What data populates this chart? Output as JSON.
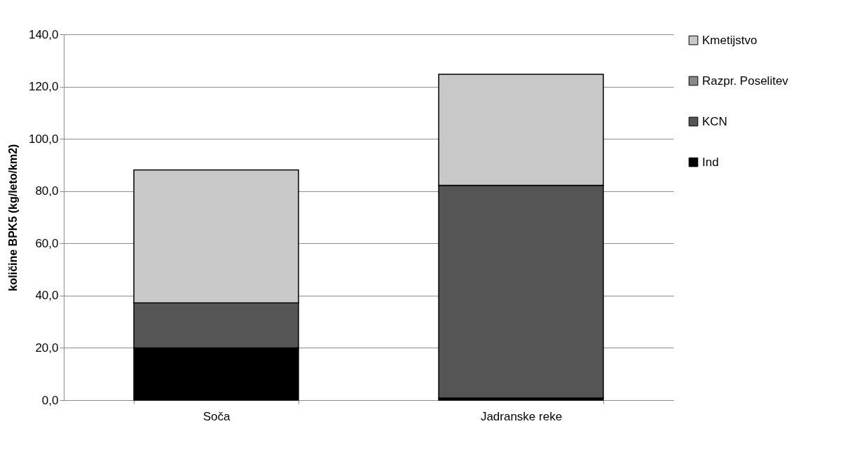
{
  "chart_data": {
    "type": "bar",
    "stacked": true,
    "ylabel": "količine BPK5 (kg/leto/km2)",
    "categories": [
      "Soča",
      "Jadranske reke"
    ],
    "series": [
      {
        "name": "Ind",
        "color": "#000000",
        "values": [
          20.0,
          0.8
        ]
      },
      {
        "name": "KCN",
        "color": "#555555",
        "values": [
          17.2,
          81.4
        ]
      },
      {
        "name": "Razpr. Poselitev",
        "color": "#888888",
        "values": [
          0,
          0
        ]
      },
      {
        "name": "Kmetijstvo",
        "color": "#c8c8c8",
        "values": [
          50.9,
          42.5
        ]
      }
    ],
    "ylim": [
      0,
      140
    ],
    "yticks": [
      {
        "value": 0,
        "label": "0,0"
      },
      {
        "value": 20,
        "label": "20,0"
      },
      {
        "value": 40,
        "label": "40,0"
      },
      {
        "value": 60,
        "label": "60,0"
      },
      {
        "value": 80,
        "label": "80,0"
      },
      {
        "value": 100,
        "label": "100,0"
      },
      {
        "value": 120,
        "label": "120,0"
      },
      {
        "value": 140,
        "label": "140,0"
      }
    ],
    "grid": "y",
    "legend": "right"
  }
}
